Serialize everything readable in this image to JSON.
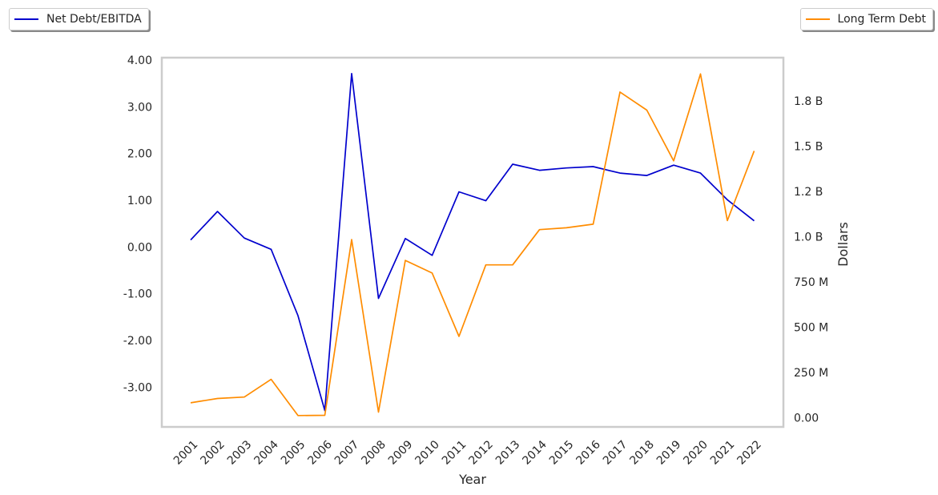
{
  "chart_data": {
    "type": "line",
    "xlabel": "Year",
    "ylabel_left": "",
    "ylabel_right": "Dollars",
    "x": [
      "2001",
      "2002",
      "2003",
      "2004",
      "2005",
      "2006",
      "2007",
      "2008",
      "2009",
      "2010",
      "2011",
      "2012",
      "2013",
      "2014",
      "2015",
      "2016",
      "2017",
      "2018",
      "2019",
      "2020",
      "2021",
      "2022"
    ],
    "left_axis": {
      "ylim": [
        -3.85,
        4.05
      ],
      "ticks": [
        4,
        3,
        2,
        1,
        0,
        -1,
        -2,
        -3
      ],
      "tick_labels": [
        "4.00",
        "3.00",
        "2.00",
        "1.00",
        "0.00",
        "-1.00",
        "-2.00",
        "-3.00"
      ]
    },
    "right_axis": {
      "ylim": [
        -50000000,
        1990000000
      ],
      "ticks": [
        0,
        250000000,
        500000000,
        750000000,
        1000000000,
        1250000000,
        1500000000,
        1750000000
      ],
      "tick_labels": [
        "0.00",
        "250 M",
        "500 M",
        "750 M",
        "1.0 B",
        "1.2 B",
        "1.5 B",
        "1.8 B"
      ]
    },
    "series": [
      {
        "name": "Net Debt/EBITDA",
        "axis": "left",
        "color": "#0000cd",
        "values": [
          0.15,
          0.76,
          0.19,
          -0.05,
          -1.47,
          -3.5,
          3.71,
          -1.1,
          0.18,
          -0.18,
          1.18,
          0.99,
          1.77,
          1.64,
          1.69,
          1.72,
          1.58,
          1.53,
          1.75,
          1.58,
          1.01,
          0.56
        ]
      },
      {
        "name": "Long Term Debt",
        "axis": "right",
        "color": "#ff8c00",
        "values": [
          83000000,
          107000000,
          115000000,
          213000000,
          13000000,
          14000000,
          985000000,
          32000000,
          870000000,
          800000000,
          450000000,
          845000000,
          845000000,
          1040000000,
          1050000000,
          1070000000,
          1800000000,
          1700000000,
          1420000000,
          1900000000,
          1090000000,
          1475000000
        ]
      }
    ],
    "grid": false,
    "legend_placement": "top-left and top-right, outside plot"
  }
}
